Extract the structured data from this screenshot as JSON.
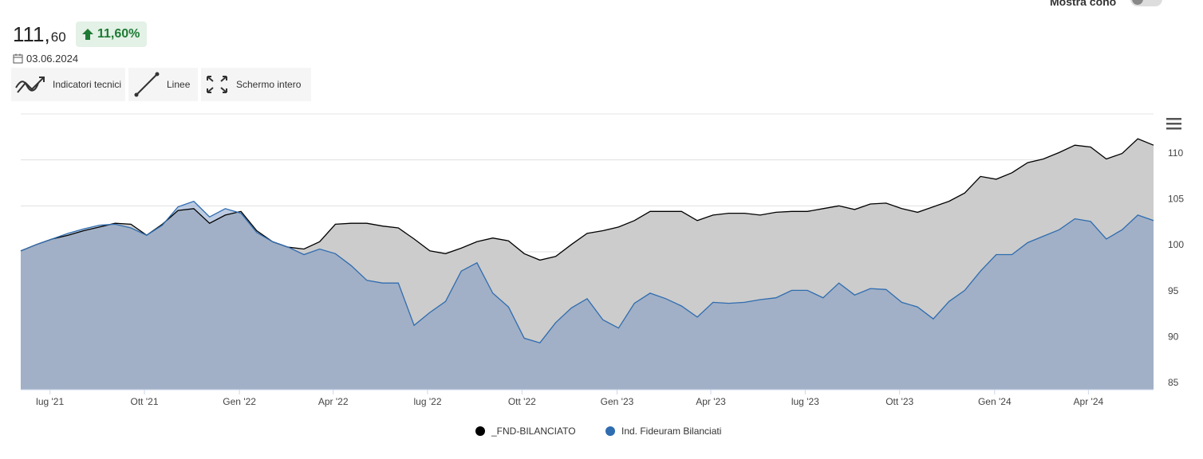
{
  "toggle_label": "Mostra cono",
  "price_main": "111,",
  "price_decimals": "60",
  "change": "11,60%",
  "date": "03.06.2024",
  "buttons": [
    "Indicatori tecnici",
    "Linee",
    "Schermo intero"
  ],
  "chart_data": {
    "type": "area",
    "x": [
      0,
      0.5,
      1,
      1.5,
      2,
      2.5,
      3,
      3.5,
      4,
      4.5,
      5,
      5.5,
      6,
      6.5,
      7,
      7.5,
      8,
      8.5,
      9,
      9.5,
      10,
      10.5,
      11,
      11.5,
      12,
      12.5,
      13,
      13.5,
      14,
      14.5,
      15,
      15.5,
      16,
      16.5,
      17,
      17.5,
      18,
      18.5,
      19,
      19.5,
      20,
      20.5,
      21,
      21.5,
      22,
      22.5,
      23,
      23.5,
      24,
      24.5,
      25,
      25.5,
      26,
      26.5,
      27,
      27.5,
      28,
      28.5,
      29,
      29.5,
      30,
      30.5,
      31,
      31.5,
      32,
      32.5,
      33,
      33.5,
      34,
      34.5,
      35,
      35.5,
      36
    ],
    "series": [
      {
        "name": "_FND-BILANCIATO",
        "color": "#000000",
        "fill": "#cccccc",
        "values": [
          100.1,
          100.8,
          101.4,
          101.8,
          102.3,
          102.7,
          103.1,
          103.0,
          101.8,
          103.0,
          104.5,
          104.7,
          103.1,
          104.0,
          104.4,
          102.3,
          101.1,
          100.5,
          100.3,
          101.1,
          103.0,
          103.1,
          103.1,
          102.8,
          102.6,
          101.4,
          100.1,
          99.8,
          100.4,
          101.1,
          101.5,
          101.2,
          99.8,
          99.1,
          99.5,
          100.8,
          102.0,
          102.3,
          102.7,
          103.4,
          104.4,
          104.4,
          104.4,
          103.4,
          104.0,
          104.2,
          104.2,
          104.0,
          104.3,
          104.4,
          104.4,
          104.7,
          105.0,
          104.6,
          105.2,
          105.3,
          104.7,
          104.3,
          104.9,
          105.5,
          106.4,
          108.2,
          107.9,
          108.6,
          109.7,
          110.1,
          110.8,
          111.6,
          111.4,
          110.1,
          110.7,
          112.3,
          111.6
        ]
      },
      {
        "name": "Ind. Fideuram Bilanciati",
        "color": "#2f6cb0",
        "fill": "#6d8fbf",
        "values": [
          100.1,
          100.8,
          101.4,
          102.0,
          102.5,
          102.9,
          103.0,
          102.6,
          101.8,
          102.9,
          104.9,
          105.5,
          103.8,
          104.7,
          104.2,
          102.1,
          101.1,
          100.5,
          99.7,
          100.3,
          99.8,
          98.5,
          96.9,
          96.6,
          96.6,
          92.0,
          93.4,
          94.6,
          97.9,
          98.8,
          95.5,
          94.0,
          90.6,
          90.1,
          92.3,
          93.9,
          94.9,
          92.6,
          91.7,
          94.4,
          95.5,
          94.9,
          94.1,
          92.9,
          94.5,
          94.4,
          94.5,
          94.8,
          95.0,
          95.8,
          95.8,
          95.0,
          96.6,
          95.3,
          96.0,
          95.9,
          94.5,
          94.0,
          92.7,
          94.6,
          95.8,
          97.9,
          99.7,
          99.7,
          101.0,
          101.7,
          102.4,
          103.6,
          103.3,
          101.4,
          102.4,
          104.0,
          103.4
        ]
      }
    ],
    "xlim": [
      0,
      36
    ],
    "xticks": [
      {
        "value": 0.93,
        "label": "lug '21"
      },
      {
        "value": 3.93,
        "label": "Ott '21"
      },
      {
        "value": 6.95,
        "label": "Gen '22"
      },
      {
        "value": 9.93,
        "label": "Apr '22"
      },
      {
        "value": 12.93,
        "label": "lug '22"
      },
      {
        "value": 15.93,
        "label": "Ott '22"
      },
      {
        "value": 18.95,
        "label": "Gen '23"
      },
      {
        "value": 21.93,
        "label": "Apr '23"
      },
      {
        "value": 24.93,
        "label": "lug '23"
      },
      {
        "value": 27.93,
        "label": "Ott '23"
      },
      {
        "value": 30.95,
        "label": "Gen '24"
      },
      {
        "value": 33.93,
        "label": "Apr '24"
      }
    ],
    "ylim": [
      85,
      115
    ],
    "yticks": [
      85,
      90,
      95,
      100,
      105,
      110
    ],
    "grid": true
  }
}
